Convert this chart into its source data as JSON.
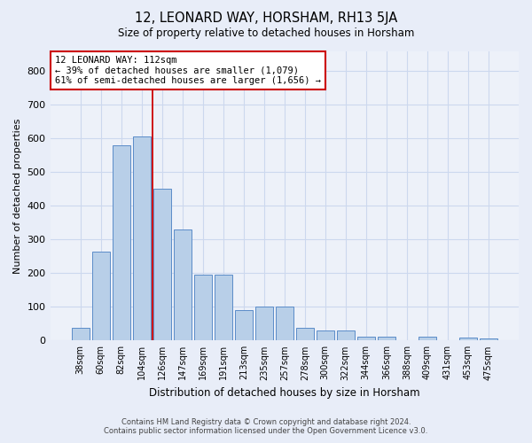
{
  "title": "12, LEONARD WAY, HORSHAM, RH13 5JA",
  "subtitle": "Size of property relative to detached houses in Horsham",
  "xlabel": "Distribution of detached houses by size in Horsham",
  "ylabel": "Number of detached properties",
  "footer_line1": "Contains HM Land Registry data © Crown copyright and database right 2024.",
  "footer_line2": "Contains public sector information licensed under the Open Government Licence v3.0.",
  "bar_labels": [
    "38sqm",
    "60sqm",
    "82sqm",
    "104sqm",
    "126sqm",
    "147sqm",
    "169sqm",
    "191sqm",
    "213sqm",
    "235sqm",
    "257sqm",
    "278sqm",
    "300sqm",
    "322sqm",
    "344sqm",
    "366sqm",
    "388sqm",
    "409sqm",
    "431sqm",
    "453sqm",
    "475sqm"
  ],
  "bar_values": [
    38,
    265,
    580,
    605,
    450,
    330,
    195,
    195,
    90,
    100,
    100,
    38,
    30,
    30,
    12,
    12,
    0,
    12,
    0,
    8,
    5
  ],
  "bar_color": "#b8cfe8",
  "bar_edgecolor": "#5b8cc8",
  "property_label": "12 LEONARD WAY: 112sqm",
  "annotation_line1": "← 39% of detached houses are smaller (1,079)",
  "annotation_line2": "61% of semi-detached houses are larger (1,656) →",
  "vline_color": "#cc0000",
  "vline_x_index": 3.52,
  "annotation_box_color": "#ffffff",
  "annotation_box_edgecolor": "#cc0000",
  "ylim": [
    0,
    860
  ],
  "yticks": [
    0,
    100,
    200,
    300,
    400,
    500,
    600,
    700,
    800
  ],
  "grid_color": "#ccd8ee",
  "background_color": "#e8edf8",
  "plot_bg_color": "#edf1f9"
}
